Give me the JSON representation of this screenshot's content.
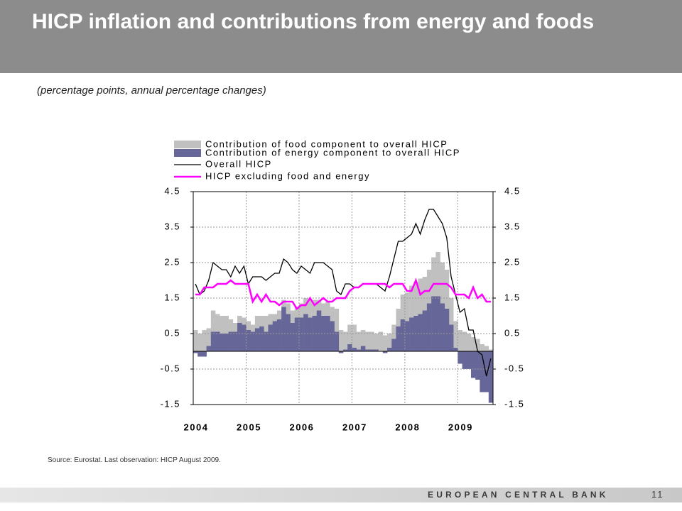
{
  "chart_data": {
    "type": "bar",
    "title": "HICP inflation and contributions from energy and foods",
    "subtitle": "(percentage points, annual percentage changes)",
    "source": "Source: Eurostat. Last observation: HICP August 2009.",
    "categories": [
      "2004",
      null,
      null,
      null,
      null,
      null,
      null,
      null,
      null,
      null,
      null,
      null,
      "2005",
      null,
      null,
      null,
      null,
      null,
      null,
      null,
      null,
      null,
      null,
      null,
      "2006",
      null,
      null,
      null,
      null,
      null,
      null,
      null,
      null,
      null,
      null,
      null,
      "2007",
      null,
      null,
      null,
      null,
      null,
      null,
      null,
      null,
      null,
      null,
      null,
      "2008",
      null,
      null,
      null,
      null,
      null,
      null,
      null,
      null,
      null,
      null,
      null,
      "2009",
      null,
      null,
      null,
      null,
      null,
      null,
      null
    ],
    "ylim": [
      -1.5,
      4.5
    ],
    "yticks": [
      -1.5,
      -0.5,
      0.5,
      1.5,
      2.5,
      3.5,
      4.5
    ],
    "y2lim": [
      -1.5,
      4.5
    ],
    "y2ticks": [
      -1.5,
      -0.5,
      0.5,
      1.5,
      2.5,
      3.5,
      4.5
    ],
    "grid": true,
    "stacked": true,
    "series": [
      {
        "name": "Contribution of food component to overall HICP",
        "type": "bar",
        "color": "#c0c0c0",
        "values": [
          0.6,
          0.5,
          0.6,
          0.5,
          0.6,
          0.5,
          0.5,
          0.5,
          0.35,
          0.25,
          0.2,
          0.2,
          0.25,
          0.2,
          0.35,
          0.3,
          0.45,
          0.3,
          0.2,
          0.25,
          0.2,
          0.3,
          0.35,
          0.3,
          0.4,
          0.45,
          0.5,
          0.45,
          0.3,
          0.35,
          0.4,
          0.4,
          0.65,
          0.6,
          0.5,
          0.55,
          0.65,
          0.5,
          0.45,
          0.5,
          0.5,
          0.45,
          0.55,
          0.45,
          0.4,
          0.4,
          0.5,
          0.7,
          0.8,
          0.9,
          0.95,
          1.0,
          0.95,
          0.95,
          1.1,
          1.25,
          1.15,
          1.1,
          0.75,
          0.75,
          0.6,
          0.55,
          0.5,
          0.4,
          0.35,
          0.2,
          0.15,
          0.05
        ]
      },
      {
        "name": "Contribution of energy component to overall HICP",
        "type": "bar",
        "color": "#666699",
        "values": [
          -0.05,
          -0.15,
          -0.15,
          0.15,
          0.55,
          0.55,
          0.5,
          0.5,
          0.55,
          0.55,
          0.8,
          0.75,
          0.6,
          0.55,
          0.65,
          0.7,
          0.55,
          0.75,
          0.85,
          0.9,
          1.25,
          1.05,
          0.8,
          0.95,
          0.95,
          1.05,
          0.95,
          1.0,
          1.15,
          1.0,
          1.0,
          0.85,
          0.55,
          -0.05,
          0.05,
          0.2,
          0.1,
          0.05,
          0.15,
          0.05,
          0.05,
          0.05,
          0.0,
          -0.05,
          0.1,
          0.35,
          0.7,
          0.9,
          0.85,
          0.95,
          1.0,
          1.05,
          1.15,
          1.35,
          1.55,
          1.55,
          1.35,
          1.2,
          0.75,
          0.1,
          -0.35,
          -0.5,
          -0.5,
          -0.75,
          -0.8,
          -1.15,
          -1.15,
          -1.45
        ]
      },
      {
        "name": "Overall HICP",
        "type": "line",
        "color": "#000000",
        "values": [
          1.9,
          1.6,
          1.7,
          2.0,
          2.5,
          2.4,
          2.3,
          2.3,
          2.1,
          2.4,
          2.2,
          2.4,
          1.9,
          2.1,
          2.1,
          2.1,
          2.0,
          2.1,
          2.2,
          2.2,
          2.6,
          2.5,
          2.3,
          2.2,
          2.4,
          2.3,
          2.2,
          2.5,
          2.5,
          2.5,
          2.4,
          2.3,
          1.7,
          1.6,
          1.9,
          1.9,
          1.8,
          1.8,
          1.9,
          1.9,
          1.9,
          1.9,
          1.8,
          1.7,
          2.1,
          2.6,
          3.1,
          3.1,
          3.2,
          3.3,
          3.6,
          3.3,
          3.7,
          4.0,
          4.0,
          3.8,
          3.6,
          3.2,
          2.1,
          1.6,
          1.1,
          1.2,
          0.6,
          0.6,
          0.0,
          -0.1,
          -0.7,
          -0.2
        ]
      },
      {
        "name": "HICP excluding food and energy",
        "type": "line",
        "color": "#ff00ff",
        "values": [
          1.6,
          1.6,
          1.8,
          1.8,
          1.8,
          1.9,
          1.9,
          1.9,
          2.0,
          1.9,
          1.9,
          1.9,
          1.9,
          1.4,
          1.6,
          1.4,
          1.6,
          1.4,
          1.4,
          1.3,
          1.4,
          1.4,
          1.4,
          1.2,
          1.3,
          1.3,
          1.5,
          1.3,
          1.4,
          1.5,
          1.4,
          1.4,
          1.5,
          1.5,
          1.5,
          1.7,
          1.8,
          1.8,
          1.9,
          1.9,
          1.9,
          1.9,
          1.9,
          1.9,
          1.8,
          1.9,
          1.9,
          1.9,
          1.7,
          1.7,
          2.0,
          1.6,
          1.7,
          1.7,
          1.9,
          1.9,
          1.9,
          1.9,
          1.8,
          1.6,
          1.6,
          1.6,
          1.5,
          1.8,
          1.5,
          1.6,
          1.4,
          1.4
        ]
      }
    ]
  },
  "footer": {
    "organization": "EUROPEAN CENTRAL BANK",
    "page": "11"
  }
}
